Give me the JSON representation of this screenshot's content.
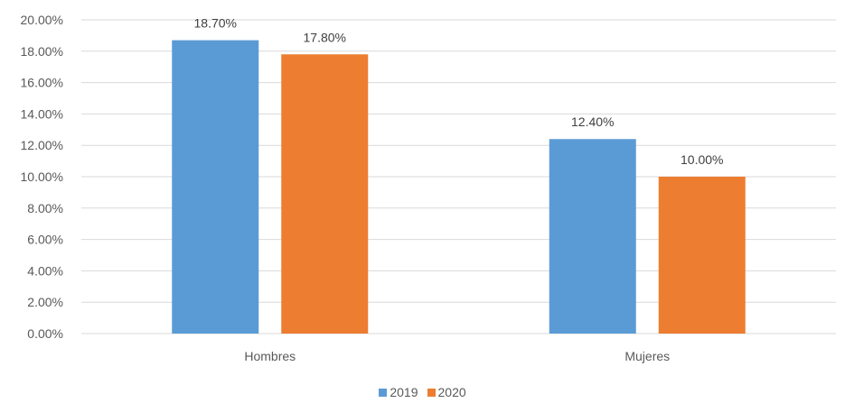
{
  "chart_data": {
    "type": "bar",
    "categories": [
      "Hombres",
      "Mujeres"
    ],
    "series": [
      {
        "name": "2019",
        "values": [
          18.7,
          12.4
        ],
        "labels": [
          "18.70%",
          "12.40%"
        ],
        "color": "#5B9BD5"
      },
      {
        "name": "2020",
        "values": [
          17.8,
          10.0
        ],
        "labels": [
          "17.80%",
          "10.00%"
        ],
        "color": "#ED7D31"
      }
    ],
    "ylim": [
      0,
      20
    ],
    "y_step": 2,
    "ytick_labels": [
      "0.00%",
      "2.00%",
      "4.00%",
      "6.00%",
      "8.00%",
      "10.00%",
      "12.00%",
      "14.00%",
      "16.00%",
      "18.00%",
      "20.00%"
    ],
    "grid": true,
    "grid_color": "#D9D9D9",
    "legend_position": "bottom",
    "title": "",
    "xlabel": "",
    "ylabel": ""
  }
}
